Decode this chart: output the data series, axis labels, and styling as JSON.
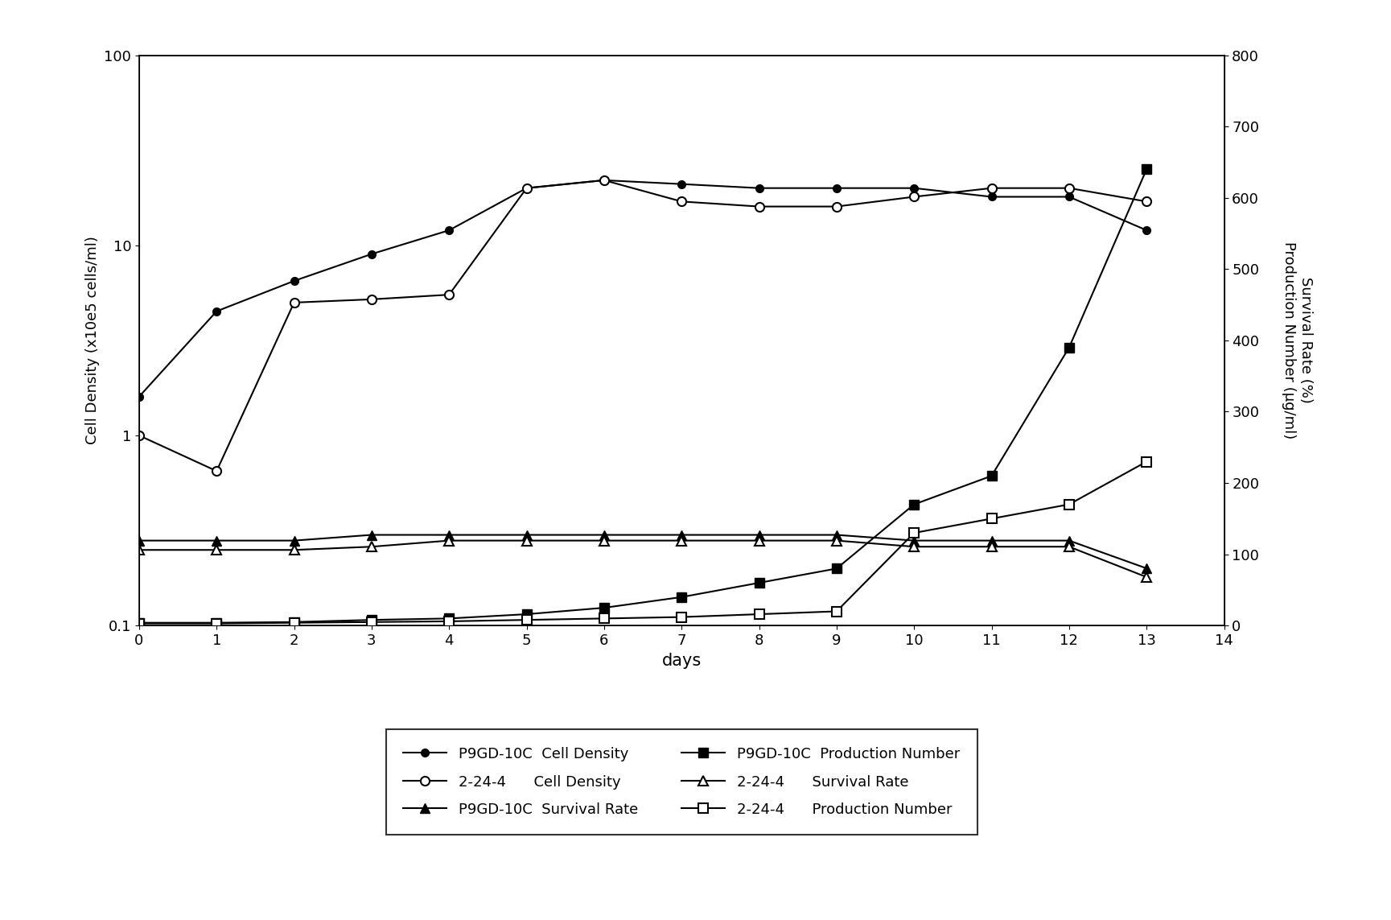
{
  "p9gd10c_cell_density_days": [
    0,
    1,
    2,
    3,
    4,
    5,
    6,
    7,
    8,
    9,
    10,
    11,
    12,
    13
  ],
  "p9gd10c_cell_density_vals": [
    1.6,
    4.5,
    6.5,
    9.0,
    12.0,
    20.0,
    22.0,
    21.0,
    20.0,
    20.0,
    20.0,
    18.0,
    18.0,
    12.0
  ],
  "cell_2244_density_days": [
    0,
    1,
    2,
    3,
    4,
    5,
    6,
    7,
    8,
    9,
    10,
    11,
    12,
    13
  ],
  "cell_2244_density_vals": [
    1.0,
    0.65,
    5.0,
    5.2,
    5.5,
    20.0,
    22.0,
    17.0,
    16.0,
    16.0,
    18.0,
    20.0,
    20.0,
    17.0
  ],
  "p9gd10c_survival_days": [
    0,
    1,
    2,
    3,
    4,
    5,
    6,
    7,
    8,
    9,
    10,
    11,
    12,
    13
  ],
  "p9gd10c_survival_vals": [
    0.28,
    0.28,
    0.28,
    0.3,
    0.3,
    0.3,
    0.3,
    0.3,
    0.3,
    0.3,
    0.28,
    0.28,
    0.28,
    0.2
  ],
  "survival_2244_days": [
    0,
    1,
    2,
    3,
    4,
    5,
    6,
    7,
    8,
    9,
    10,
    11,
    12,
    13
  ],
  "survival_2244_vals": [
    0.25,
    0.25,
    0.25,
    0.26,
    0.28,
    0.28,
    0.28,
    0.28,
    0.28,
    0.28,
    0.26,
    0.26,
    0.26,
    0.18
  ],
  "p9gd10c_production_days": [
    0,
    1,
    2,
    3,
    4,
    5,
    6,
    7,
    8,
    9,
    10,
    11,
    12,
    13
  ],
  "p9gd10c_production_vals": [
    4,
    4,
    5,
    8,
    10,
    16,
    25,
    40,
    60,
    80,
    170,
    210,
    390,
    640
  ],
  "production_2244_days": [
    0,
    1,
    2,
    3,
    4,
    5,
    6,
    7,
    8,
    9,
    10,
    11,
    12,
    13
  ],
  "production_2244_vals": [
    3,
    3,
    4,
    5,
    6,
    8,
    10,
    12,
    16,
    20,
    130,
    150,
    170,
    230
  ],
  "ylabel_left": "Cell Density (x10e5 cells/ml)",
  "ylabel_right": "Survival Rate (%)\nProduction Number (μg/ml)",
  "xlabel": "days",
  "ylim_right": [
    0,
    800
  ],
  "xlim": [
    0,
    14
  ],
  "xticks": [
    0,
    1,
    2,
    3,
    4,
    5,
    6,
    7,
    8,
    9,
    10,
    11,
    12,
    13,
    14
  ],
  "legend_entries_col1": [
    "P9GD-10C  Cell Density",
    "P9GD-10C  Survival Rate",
    "2-24-4      Survival Rate"
  ],
  "legend_entries_col2": [
    "2-24-4      Cell Density",
    "P9GD-10C  Production Number",
    "2-24-4      Production Number"
  ]
}
